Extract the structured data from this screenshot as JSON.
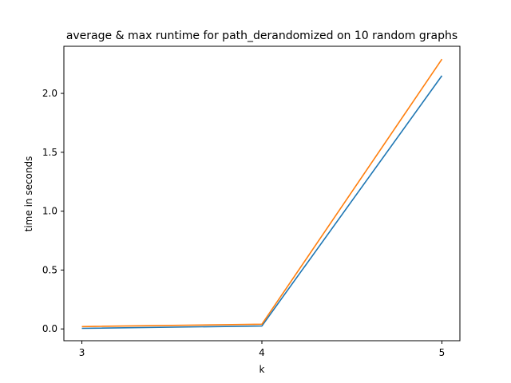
{
  "chart_data": {
    "type": "line",
    "title": "average & max runtime for path_derandomized on 10 random graphs",
    "xlabel": "k",
    "ylabel": "time in seconds",
    "x": [
      3,
      4,
      5
    ],
    "xticks": [
      "3",
      "4",
      "5"
    ],
    "yticks": [
      "0.0",
      "0.5",
      "1.0",
      "1.5",
      "2.0"
    ],
    "xlim": [
      2.9,
      5.1
    ],
    "ylim": [
      -0.1,
      2.4
    ],
    "grid": false,
    "series": [
      {
        "values": [
          0.005,
          0.025,
          2.15
        ],
        "color": "#1f77b4"
      },
      {
        "values": [
          0.02,
          0.04,
          2.29
        ],
        "color": "#ff7f0e"
      }
    ]
  }
}
